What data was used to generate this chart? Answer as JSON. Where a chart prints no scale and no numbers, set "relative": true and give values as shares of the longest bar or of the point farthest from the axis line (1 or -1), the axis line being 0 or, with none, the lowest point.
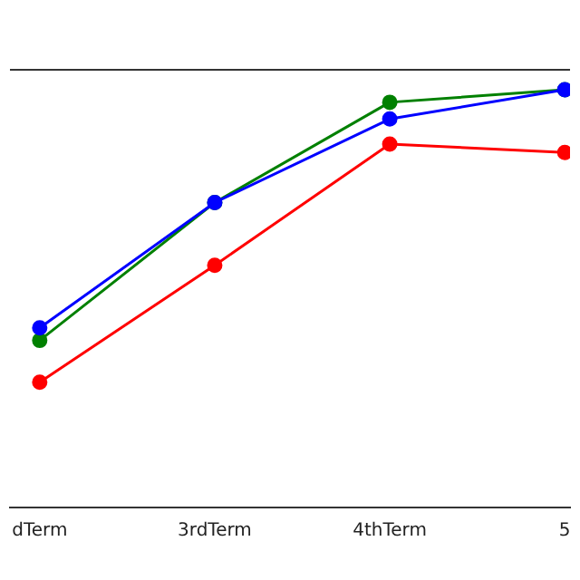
{
  "chart_data": {
    "type": "line",
    "relative": true,
    "categories": [
      "dTerm",
      "3rdTerm",
      "4thTerm",
      "5"
    ],
    "marker": "circle",
    "grid": false,
    "series": [
      {
        "color": "#0000ff",
        "values": [
          0.43,
          0.73,
          0.93,
          1
        ]
      },
      {
        "color": "#008000",
        "values": [
          0.4,
          0.73,
          0.97,
          1
        ]
      },
      {
        "color": "#ff0000",
        "values": [
          0.3,
          0.58,
          0.87,
          0.85
        ]
      }
    ]
  }
}
